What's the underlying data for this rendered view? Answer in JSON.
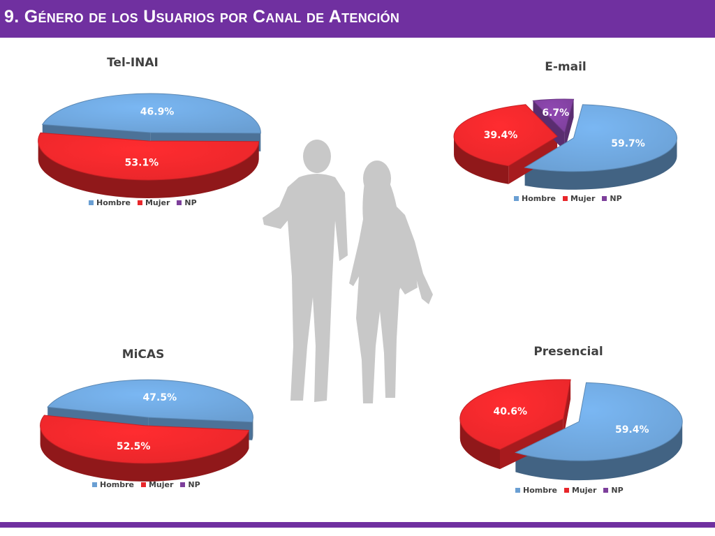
{
  "slide": {
    "title": "9. Género de los Usuarios por Canal de Atención",
    "accent_color": "#7030a0"
  },
  "legend_labels": [
    "Hombre",
    "Mujer",
    "NP"
  ],
  "colors": {
    "Hombre": "#6a9fd3",
    "Mujer": "#e8262a",
    "NP": "#7d3f9b"
  },
  "illustration": {
    "icon": "couple-walking-silhouette-icon"
  },
  "chart_data": [
    {
      "type": "pie",
      "title": "Tel-INAI",
      "categories": [
        "Hombre",
        "Mujer",
        "NP"
      ],
      "values": [
        46.9,
        53.1,
        0
      ],
      "labels": [
        "46.9%",
        "53.1%",
        ""
      ],
      "legend_position": "bottom"
    },
    {
      "type": "pie",
      "title": "E-mail",
      "categories": [
        "Hombre",
        "Mujer",
        "NP"
      ],
      "values": [
        59.7,
        39.4,
        6.7
      ],
      "labels": [
        "59.7%",
        "39.4%",
        "6.7%"
      ],
      "legend_position": "bottom"
    },
    {
      "type": "pie",
      "title": "MiCAS",
      "categories": [
        "Hombre",
        "Mujer",
        "NP"
      ],
      "values": [
        47.5,
        52.5,
        0
      ],
      "labels": [
        "47.5%",
        "52.5%",
        ""
      ],
      "legend_position": "bottom"
    },
    {
      "type": "pie",
      "title": "Presencial",
      "categories": [
        "Hombre",
        "Mujer",
        "NP"
      ],
      "values": [
        59.4,
        40.6,
        0
      ],
      "labels": [
        "59.4%",
        "40.6%",
        ""
      ],
      "legend_position": "bottom"
    }
  ]
}
